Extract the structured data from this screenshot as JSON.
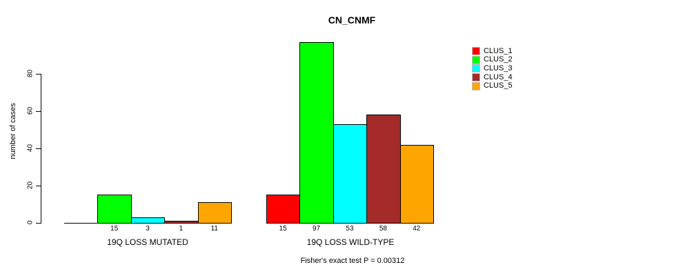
{
  "chart_data": {
    "type": "bar",
    "title": "CN_CNMF",
    "ylabel": "number of cases",
    "ylim": [
      0,
      100
    ],
    "yticks": [
      0,
      20,
      40,
      60,
      80
    ],
    "grid": false,
    "legend_position": "top-right",
    "legend": [
      {
        "label": "CLUS_1",
        "color": "#FF0000"
      },
      {
        "label": "CLUS_2",
        "color": "#00FF00"
      },
      {
        "label": "CLUS_3",
        "color": "#00FFFF"
      },
      {
        "label": "CLUS_4",
        "color": "#A52A2A"
      },
      {
        "label": "CLUS_5",
        "color": "#FFA500"
      }
    ],
    "groups": [
      {
        "label": "19Q LOSS MUTATED",
        "values": [
          0,
          15,
          3,
          1,
          11
        ],
        "bar_labels": [
          "",
          "15",
          "3",
          "1",
          "11"
        ]
      },
      {
        "label": "19Q LOSS WILD-TYPE",
        "values": [
          15,
          97,
          53,
          58,
          42
        ],
        "bar_labels": [
          "15",
          "97",
          "53",
          "58",
          "42"
        ]
      }
    ],
    "annotation": "Fisher's exact test P = 0.00312"
  }
}
